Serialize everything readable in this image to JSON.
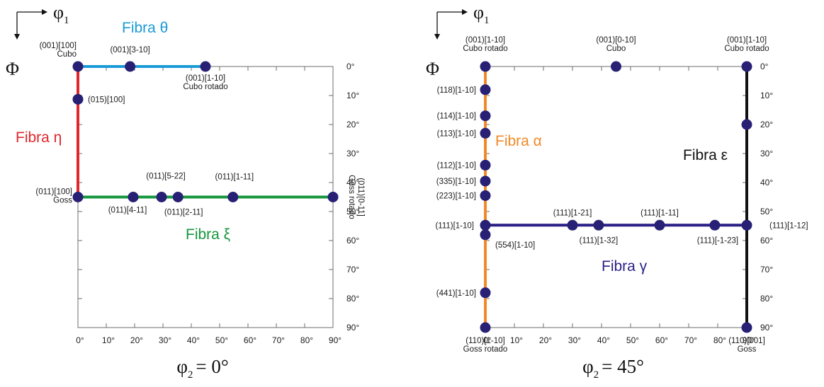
{
  "colors": {
    "theta": "#1a9bd6",
    "eta": "#e0262c",
    "xi": "#14963c",
    "alpha": "#f08a28",
    "gamma": "#2a1f86",
    "epsilon": "#111111",
    "point": "#272074",
    "frame": "#6e6e6e"
  },
  "axes": {
    "phi1_base": "φ",
    "phi1_sub": "1",
    "phi_symbol": "Φ",
    "phi1_ticks": [
      "0°",
      "10°",
      "20°",
      "30°",
      "40°",
      "50°",
      "60°",
      "70°",
      "80°",
      "90°"
    ],
    "Phi_ticks": [
      "0°",
      "10°",
      "20°",
      "30°",
      "40°",
      "50°",
      "60°",
      "70°",
      "80°",
      "90°"
    ]
  },
  "panels": [
    {
      "phi2_base": "φ",
      "phi2_sub": "2",
      "phi2_value": "= 0°",
      "fibers": [
        {
          "key": "theta",
          "label": "Fibra θ",
          "from": [
            0,
            0
          ],
          "to": [
            45,
            0
          ]
        },
        {
          "key": "eta",
          "label": "Fibra η",
          "from": [
            0,
            0
          ],
          "to": [
            0,
            45
          ]
        },
        {
          "key": "xi",
          "label": "Fibra ξ",
          "from": [
            0,
            45
          ],
          "to": [
            90,
            45
          ]
        }
      ],
      "points": [
        {
          "phi1": 0,
          "Phi": 0,
          "lines": [
            "(001)[100]",
            "Cubo"
          ]
        },
        {
          "phi1": 18.4,
          "Phi": 0,
          "lines": [
            "(001)[3-10]"
          ]
        },
        {
          "phi1": 45,
          "Phi": 0,
          "lines": [
            "(001)[1-10]",
            "Cubo rotado"
          ]
        },
        {
          "phi1": 0,
          "Phi": 11.3,
          "lines": [
            "(015)[100]"
          ]
        },
        {
          "phi1": 0,
          "Phi": 45,
          "lines": [
            "(011)[100]",
            "Goss"
          ]
        },
        {
          "phi1": 19.5,
          "Phi": 45,
          "lines": [
            "(011)[4-11]"
          ]
        },
        {
          "phi1": 29.5,
          "Phi": 45,
          "lines": [
            "(011)[5-22]"
          ]
        },
        {
          "phi1": 35.3,
          "Phi": 45,
          "lines": [
            "(011)[2-11]"
          ]
        },
        {
          "phi1": 54.7,
          "Phi": 45,
          "lines": [
            "(011)[1-11]"
          ]
        },
        {
          "phi1": 90,
          "Phi": 45,
          "lines": [
            "(011)[0-11]",
            "Goss rotado"
          ]
        }
      ]
    },
    {
      "phi2_base": "φ",
      "phi2_sub": "2",
      "phi2_value": "= 45°",
      "fibers": [
        {
          "key": "alpha",
          "label": "Fibra α",
          "from": [
            0,
            0
          ],
          "to": [
            0,
            90
          ]
        },
        {
          "key": "gamma",
          "label": "Fibra γ",
          "from": [
            0,
            54.7
          ],
          "to": [
            90,
            54.7
          ]
        },
        {
          "key": "epsilon",
          "label": "Fibra ε",
          "from": [
            90,
            0
          ],
          "to": [
            90,
            90
          ]
        }
      ],
      "points": [
        {
          "phi1": 0,
          "Phi": 0,
          "lines": [
            "(001)[1-10]",
            "Cubo rotado"
          ]
        },
        {
          "phi1": 45,
          "Phi": 0,
          "lines": [
            "(001)[0-10]",
            "Cubo"
          ]
        },
        {
          "phi1": 90,
          "Phi": 0,
          "lines": [
            "(001)[1-10]",
            "Cubo rotado"
          ]
        },
        {
          "phi1": 0,
          "Phi": 8.0,
          "lines": [
            "(118)[1-10]"
          ]
        },
        {
          "phi1": 0,
          "Phi": 17.0,
          "lines": [
            "(114)[1-10]"
          ]
        },
        {
          "phi1": 0,
          "Phi": 23.0,
          "lines": [
            "(113)[1-10]"
          ]
        },
        {
          "phi1": 0,
          "Phi": 34.0,
          "lines": [
            "(112)[1-10]"
          ]
        },
        {
          "phi1": 0,
          "Phi": 39.5,
          "lines": [
            "(335)[1-10]"
          ]
        },
        {
          "phi1": 0,
          "Phi": 44.5,
          "lines": [
            "(223)[1-10]"
          ]
        },
        {
          "phi1": 0,
          "Phi": 54.7,
          "lines": [
            "(111)[1-10]"
          ]
        },
        {
          "phi1": 0,
          "Phi": 58.0,
          "lines": [
            "(554)[1-10]"
          ]
        },
        {
          "phi1": 0,
          "Phi": 78.0,
          "lines": [
            "(441)[1-10]"
          ]
        },
        {
          "phi1": 0,
          "Phi": 90,
          "lines": [
            "(110)[1-10]",
            "Goss rotado"
          ]
        },
        {
          "phi1": 30,
          "Phi": 54.7,
          "lines": [
            "(111)[1-21]"
          ]
        },
        {
          "phi1": 39,
          "Phi": 54.7,
          "lines": [
            "(111)[1-32]"
          ]
        },
        {
          "phi1": 60,
          "Phi": 54.7,
          "lines": [
            "(111)[1-11]"
          ]
        },
        {
          "phi1": 79,
          "Phi": 54.7,
          "lines": [
            "(111)[-1-23]"
          ]
        },
        {
          "phi1": 90,
          "Phi": 54.7,
          "lines": [
            "(111)[1-12]"
          ]
        },
        {
          "phi1": 90,
          "Phi": 20,
          "lines": []
        },
        {
          "phi1": 90,
          "Phi": 90,
          "lines": [
            "(110)[001]",
            "Goss"
          ]
        }
      ]
    }
  ]
}
